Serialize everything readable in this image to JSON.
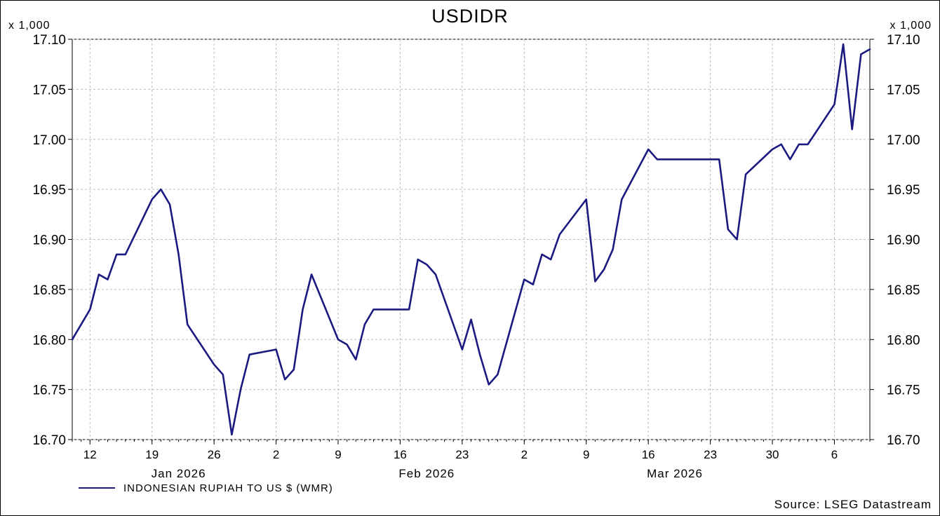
{
  "chart_data": {
    "type": "line",
    "title": "USDIDR",
    "y_multiplier": "x 1,000",
    "source": "Source: LSEG Datastream",
    "ylim": [
      16.7,
      17.1
    ],
    "yticks": [
      "16.70",
      "16.75",
      "16.80",
      "16.85",
      "16.90",
      "16.95",
      "17.00",
      "17.05",
      "17.10"
    ],
    "xlim": [
      "2026-01-10",
      "2026-04-10"
    ],
    "xticks": [
      {
        "date": "2026-01-12",
        "label": "12"
      },
      {
        "date": "2026-01-19",
        "label": "19"
      },
      {
        "date": "2026-01-26",
        "label": "26"
      },
      {
        "date": "2026-02-02",
        "label": "2"
      },
      {
        "date": "2026-02-09",
        "label": "9"
      },
      {
        "date": "2026-02-16",
        "label": "16"
      },
      {
        "date": "2026-02-23",
        "label": "23"
      },
      {
        "date": "2026-03-02",
        "label": "2"
      },
      {
        "date": "2026-03-09",
        "label": "9"
      },
      {
        "date": "2026-03-16",
        "label": "16"
      },
      {
        "date": "2026-03-23",
        "label": "23"
      },
      {
        "date": "2026-03-30",
        "label": "30"
      },
      {
        "date": "2026-04-06",
        "label": "6"
      }
    ],
    "month_labels": [
      {
        "date": "2026-01-22",
        "label": "Jan 2026"
      },
      {
        "date": "2026-02-19",
        "label": "Feb 2026"
      },
      {
        "date": "2026-03-19",
        "label": "Mar 2026"
      }
    ],
    "grid": true,
    "legend_position": "bottom-left",
    "series": [
      {
        "name": "INDONESIAN RUPIAH TO US $ (WMR)",
        "color": "#1a1a80",
        "x": [
          "2026-01-10",
          "2026-01-12",
          "2026-01-13",
          "2026-01-14",
          "2026-01-15",
          "2026-01-16",
          "2026-01-19",
          "2026-01-20",
          "2026-01-21",
          "2026-01-22",
          "2026-01-23",
          "2026-01-26",
          "2026-01-27",
          "2026-01-28",
          "2026-01-29",
          "2026-01-30",
          "2026-02-02",
          "2026-02-03",
          "2026-02-04",
          "2026-02-05",
          "2026-02-06",
          "2026-02-09",
          "2026-02-10",
          "2026-02-11",
          "2026-02-12",
          "2026-02-13",
          "2026-02-16",
          "2026-02-17",
          "2026-02-18",
          "2026-02-19",
          "2026-02-20",
          "2026-02-23",
          "2026-02-24",
          "2026-02-25",
          "2026-02-26",
          "2026-02-27",
          "2026-03-02",
          "2026-03-03",
          "2026-03-04",
          "2026-03-05",
          "2026-03-06",
          "2026-03-09",
          "2026-03-10",
          "2026-03-11",
          "2026-03-12",
          "2026-03-13",
          "2026-03-16",
          "2026-03-17",
          "2026-03-18",
          "2026-03-19",
          "2026-03-20",
          "2026-03-23",
          "2026-03-24",
          "2026-03-25",
          "2026-03-26",
          "2026-03-27",
          "2026-03-30",
          "2026-03-31",
          "2026-04-01",
          "2026-04-02",
          "2026-04-03",
          "2026-04-06",
          "2026-04-07",
          "2026-04-08",
          "2026-04-09",
          "2026-04-10"
        ],
        "values": [
          16.8,
          16.83,
          16.865,
          16.86,
          16.885,
          16.885,
          16.94,
          16.95,
          16.935,
          16.885,
          16.815,
          16.775,
          16.765,
          16.705,
          16.75,
          16.785,
          16.79,
          16.76,
          16.77,
          16.83,
          16.865,
          16.8,
          16.795,
          16.78,
          16.815,
          16.83,
          16.83,
          16.83,
          16.88,
          16.875,
          16.865,
          16.79,
          16.82,
          16.785,
          16.755,
          16.765,
          16.86,
          16.855,
          16.885,
          16.88,
          16.905,
          16.94,
          16.858,
          16.87,
          16.89,
          16.94,
          16.99,
          16.98,
          16.98,
          16.98,
          16.98,
          16.98,
          16.98,
          16.91,
          16.9,
          16.965,
          16.99,
          16.995,
          16.98,
          16.995,
          16.995,
          17.035,
          17.095,
          17.01,
          17.085,
          17.09
        ]
      }
    ]
  }
}
